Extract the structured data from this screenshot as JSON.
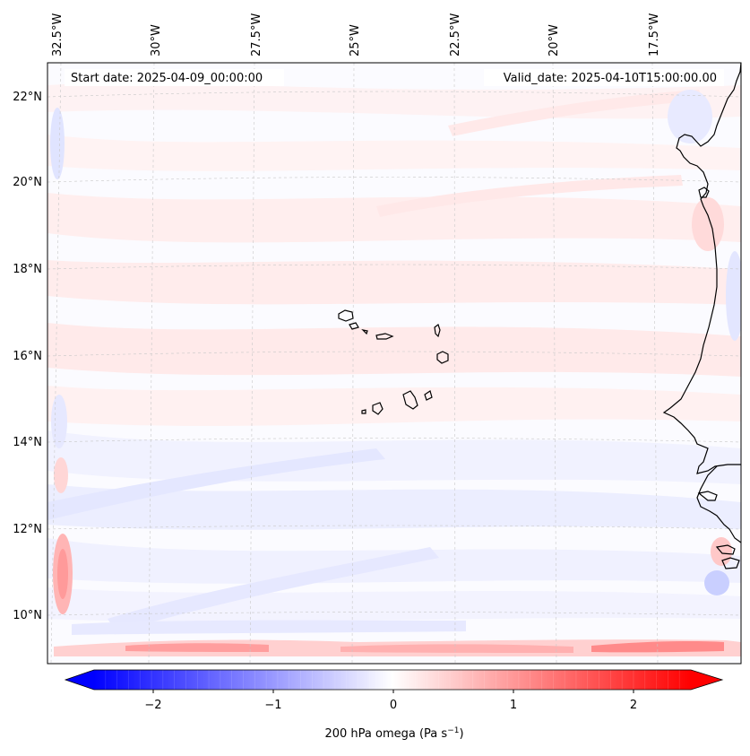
{
  "map": {
    "start_date_label": "Start date: 2025-04-09_00:00:00",
    "valid_date_label": "Valid_date: 2025-04-10T15:00:00.00",
    "longitude_labels": [
      "32.5°W",
      "30°W",
      "27.5°W",
      "25°W",
      "22.5°W",
      "20°W",
      "17.5°W"
    ],
    "latitude_labels": [
      "22°N",
      "20°N",
      "18°N",
      "16°N",
      "14°N",
      "12°N",
      "10°N"
    ],
    "field": "200 hPa omega",
    "units": "Pa s",
    "units_exponent": "−1",
    "colorbar": {
      "colormap": "bwr",
      "vmin": -2.6,
      "vmax": 2.6,
      "extend": "both",
      "levels": 52,
      "tick_labels": [
        "−2",
        "−1",
        "0",
        "1",
        "2"
      ],
      "tick_values": [
        -2,
        -1,
        0,
        1,
        2
      ]
    },
    "colors": {
      "coastline": "#000000",
      "gridline": "#c8c8c8",
      "negative": "#0000ff",
      "positive": "#ff0000",
      "zero": "#ffffff"
    }
  }
}
